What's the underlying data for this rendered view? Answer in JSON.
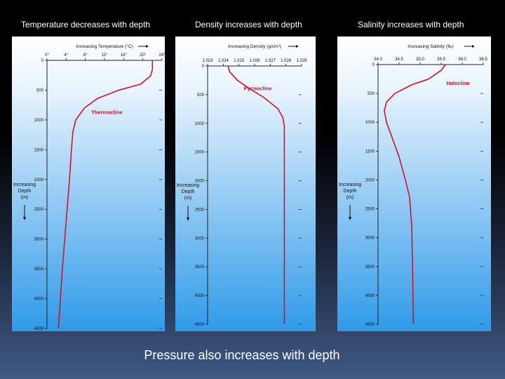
{
  "slide": {
    "titles": [
      "Temperature decreases with depth",
      "Density increases with depth",
      "Salinity increases with depth"
    ],
    "footer": "Pressure also increases with depth"
  },
  "colors": {
    "curve": "#d6102a",
    "plot_top": "#ffffff",
    "plot_bottom": "#2f9ae8",
    "axis": "#222222"
  },
  "chart_data": [
    {
      "type": "line",
      "xlabel": "Increasing Temperature (°C)",
      "ylabel": "Increasing Depth (m)",
      "x_ticks": [
        "0°",
        "4°",
        "8°",
        "12°",
        "16°",
        "20°",
        "24°"
      ],
      "x_tick_values": [
        0,
        4,
        8,
        12,
        16,
        20,
        24
      ],
      "xlim": [
        0,
        24
      ],
      "y_ticks": [
        0,
        500,
        1000,
        1500,
        2000,
        2500,
        3000,
        3500,
        4000,
        4500
      ],
      "ylim": [
        0,
        4500
      ],
      "annotation": {
        "text": "Thermocline",
        "x": 12.5,
        "y": 900
      },
      "series": [
        {
          "points": [
            [
              22.0,
              0
            ],
            [
              22.0,
              150
            ],
            [
              21.6,
              260
            ],
            [
              19.5,
              400
            ],
            [
              15.0,
              500
            ],
            [
              10.5,
              640
            ],
            [
              7.8,
              800
            ],
            [
              6.0,
              1000
            ],
            [
              5.4,
              1200
            ],
            [
              5.1,
              1500
            ],
            [
              4.7,
              2000
            ],
            [
              4.2,
              2500
            ],
            [
              3.7,
              3000
            ],
            [
              3.2,
              3500
            ],
            [
              2.8,
              4000
            ],
            [
              2.4,
              4500
            ]
          ]
        }
      ]
    },
    {
      "type": "line",
      "xlabel": "Increasing Density (g/cm³)",
      "ylabel": "Increasing Depth (m)",
      "x_ticks": [
        "1.023",
        "1.024",
        "1.025",
        "1.026",
        "1.027",
        "1.028",
        "1.029"
      ],
      "x_tick_values": [
        1.023,
        1.024,
        1.025,
        1.026,
        1.027,
        1.028,
        1.029
      ],
      "xlim": [
        1.023,
        1.029
      ],
      "y_ticks": [
        0,
        500,
        1000,
        1500,
        2000,
        2500,
        3000,
        3500,
        4000,
        4500
      ],
      "ylim": [
        0,
        4500
      ],
      "annotation": {
        "text": "Pycnocline",
        "x": 1.0262,
        "y": 420
      },
      "series": [
        {
          "points": [
            [
              1.0243,
              0
            ],
            [
              1.0244,
              100
            ],
            [
              1.0249,
              250
            ],
            [
              1.0257,
              400
            ],
            [
              1.0266,
              550
            ],
            [
              1.0275,
              750
            ],
            [
              1.0278,
              900
            ],
            [
              1.0279,
              1050
            ],
            [
              1.0279,
              1500
            ],
            [
              1.0279,
              2500
            ],
            [
              1.0279,
              3500
            ],
            [
              1.0279,
              4500
            ]
          ]
        }
      ]
    },
    {
      "type": "line",
      "xlabel": "Increasing Salinity (‰)",
      "ylabel": "Increasing Depth (m)",
      "x_ticks": [
        "34.0",
        "34.5",
        "35.0",
        "35.5",
        "36.0",
        "36.5"
      ],
      "x_tick_values": [
        34.0,
        34.5,
        35.0,
        35.5,
        36.0,
        36.5
      ],
      "xlim": [
        34.0,
        36.5
      ],
      "y_ticks": [
        0,
        500,
        1000,
        1500,
        2000,
        2500,
        3000,
        3500,
        4000,
        4500
      ],
      "ylim": [
        0,
        4500
      ],
      "annotation": {
        "text": "Halocline",
        "x": 35.9,
        "y": 350
      },
      "series": [
        {
          "points": [
            [
              35.6,
              0
            ],
            [
              35.5,
              100
            ],
            [
              35.2,
              250
            ],
            [
              34.8,
              350
            ],
            [
              34.4,
              500
            ],
            [
              34.2,
              650
            ],
            [
              34.15,
              800
            ],
            [
              34.2,
              1000
            ],
            [
              34.35,
              1300
            ],
            [
              34.5,
              1600
            ],
            [
              34.65,
              2000
            ],
            [
              34.75,
              2300
            ],
            [
              34.8,
              2800
            ],
            [
              34.82,
              3500
            ],
            [
              34.84,
              4500
            ]
          ]
        }
      ]
    }
  ]
}
